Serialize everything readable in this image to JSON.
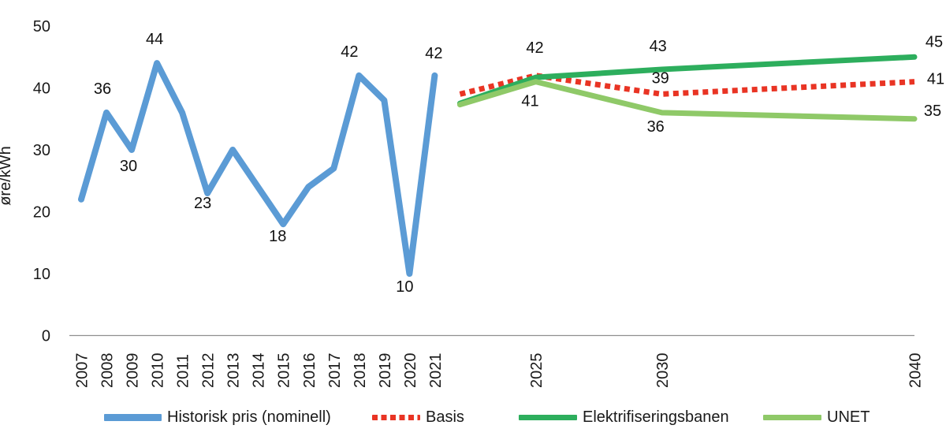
{
  "chart_data": {
    "type": "line",
    "title": "",
    "xlabel": "",
    "ylabel": "øre/kWh",
    "ylim": [
      0,
      50
    ],
    "yticks": [
      0,
      10,
      20,
      30,
      40,
      50
    ],
    "xticks": [
      2007,
      2008,
      2009,
      2010,
      2011,
      2012,
      2013,
      2014,
      2015,
      2016,
      2017,
      2018,
      2019,
      2020,
      2021,
      2025,
      2030,
      2040
    ],
    "grid": "off",
    "legend_position": "bottom",
    "axis_color": "#8f8f8f",
    "text_color": "#1a1a1a",
    "series": [
      {
        "name": "Historisk pris (nominell)",
        "color": "#5B9BD5",
        "style": "solid",
        "width": 8,
        "x": [
          2007,
          2008,
          2009,
          2010,
          2011,
          2012,
          2013,
          2014,
          2015,
          2016,
          2017,
          2018,
          2019,
          2020,
          2021
        ],
        "values": [
          22,
          36,
          30,
          44,
          36,
          23,
          30,
          24,
          18,
          24,
          27,
          42,
          38,
          10,
          42
        ],
        "point_labels": [
          {
            "x": 2008,
            "text": "36",
            "dx": -5,
            "dy": -31
          },
          {
            "x": 2009,
            "text": "30",
            "dx": -4,
            "dy": 20
          },
          {
            "x": 2010,
            "text": "44",
            "dx": -3,
            "dy": -31
          },
          {
            "x": 2012,
            "text": "23",
            "dx": -6,
            "dy": 12
          },
          {
            "x": 2015,
            "text": "18",
            "dx": -7,
            "dy": 15
          },
          {
            "x": 2018,
            "text": "42",
            "dx": -12,
            "dy": -31
          },
          {
            "x": 2020,
            "text": "10",
            "dx": -6,
            "dy": 16
          },
          {
            "x": 2021,
            "text": "42",
            "dx": -1,
            "dy": -29
          }
        ]
      },
      {
        "name": "Basis",
        "color": "#E93424",
        "style": "dotted",
        "width": 7,
        "x": [
          2022,
          2025,
          2030,
          2040
        ],
        "values": [
          39,
          42,
          39,
          41
        ],
        "point_labels": [
          {
            "x": 2025,
            "text": "42",
            "dx": -1,
            "dy": -36
          },
          {
            "x": 2030,
            "text": "39",
            "dx": -2,
            "dy": -21
          },
          {
            "x": 2040,
            "text": "41",
            "dx": 27,
            "dy": -4
          }
        ]
      },
      {
        "name": "Elektrifiseringsbanen",
        "color": "#2DAE5D",
        "style": "solid",
        "width": 7,
        "x": [
          2022,
          2025,
          2030,
          2040
        ],
        "values": [
          37.5,
          41.7,
          43,
          45
        ],
        "point_labels": [
          {
            "x": 2030,
            "text": "43",
            "dx": -5,
            "dy": -30
          },
          {
            "x": 2040,
            "text": "45",
            "dx": 25,
            "dy": -20
          }
        ]
      },
      {
        "name": "UNET",
        "color": "#8FC968",
        "style": "solid",
        "width": 7,
        "x": [
          2022,
          2025,
          2030,
          2040
        ],
        "values": [
          37.3,
          41,
          36,
          35
        ],
        "point_labels": [
          {
            "x": 2025,
            "text": "41",
            "dx": -7,
            "dy": 24
          },
          {
            "x": 2030,
            "text": "36",
            "dx": -8,
            "dy": 17
          },
          {
            "x": 2040,
            "text": "35",
            "dx": 23,
            "dy": -11
          }
        ]
      }
    ]
  },
  "legend": {
    "items": [
      {
        "label": "Historisk pris (nominell)",
        "color": "#5B9BD5",
        "style": "solid"
      },
      {
        "label": "Basis",
        "color": "#E93424",
        "style": "dotted"
      },
      {
        "label": "Elektrifiseringsbanen",
        "color": "#2DAE5D",
        "style": "solid"
      },
      {
        "label": "UNET",
        "color": "#8FC968",
        "style": "solid"
      }
    ]
  }
}
